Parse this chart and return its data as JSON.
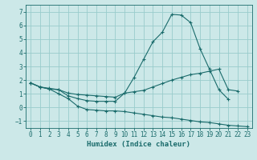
{
  "xlabel": "Humidex (Indice chaleur)",
  "background_color": "#cce8e8",
  "grid_color": "#99cccc",
  "line_color": "#1a6b6b",
  "xlim": [
    -0.5,
    23.5
  ],
  "ylim": [
    -1.5,
    7.5
  ],
  "xticks": [
    0,
    1,
    2,
    3,
    4,
    5,
    6,
    7,
    8,
    9,
    10,
    11,
    12,
    13,
    14,
    15,
    16,
    17,
    18,
    19,
    20,
    21,
    22,
    23
  ],
  "yticks": [
    -1,
    0,
    1,
    2,
    3,
    4,
    5,
    6,
    7
  ],
  "curve1_x": [
    0,
    1,
    2,
    3,
    4,
    5,
    6,
    7,
    8,
    9,
    10,
    11,
    12,
    13,
    14,
    15,
    16,
    17,
    18,
    19,
    20,
    21
  ],
  "curve1_y": [
    1.8,
    1.5,
    1.4,
    1.3,
    0.85,
    0.65,
    0.5,
    0.45,
    0.45,
    0.45,
    1.05,
    2.2,
    3.5,
    4.8,
    5.5,
    6.8,
    6.75,
    6.2,
    4.3,
    2.8,
    1.3,
    0.6
  ],
  "curve2_x": [
    0,
    1,
    2,
    3,
    4,
    5,
    6,
    7,
    8,
    9,
    10,
    11,
    12,
    13,
    14,
    15,
    16,
    17,
    18,
    19,
    20,
    21,
    22
  ],
  "curve2_y": [
    1.8,
    1.5,
    1.35,
    1.3,
    1.05,
    0.95,
    0.9,
    0.85,
    0.8,
    0.75,
    1.05,
    1.15,
    1.25,
    1.5,
    1.75,
    2.0,
    2.2,
    2.4,
    2.5,
    2.65,
    2.8,
    1.3,
    1.2
  ],
  "curve3_x": [
    0,
    1,
    2,
    3,
    4,
    5,
    6,
    7,
    8,
    9,
    10,
    11,
    12,
    13,
    14,
    15,
    16,
    17,
    18,
    19,
    20,
    21,
    22,
    23
  ],
  "curve3_y": [
    1.8,
    1.5,
    1.35,
    1.0,
    0.65,
    0.1,
    -0.15,
    -0.2,
    -0.25,
    -0.25,
    -0.3,
    -0.4,
    -0.5,
    -0.6,
    -0.7,
    -0.75,
    -0.85,
    -0.95,
    -1.05,
    -1.1,
    -1.2,
    -1.3,
    -1.35,
    -1.4
  ]
}
